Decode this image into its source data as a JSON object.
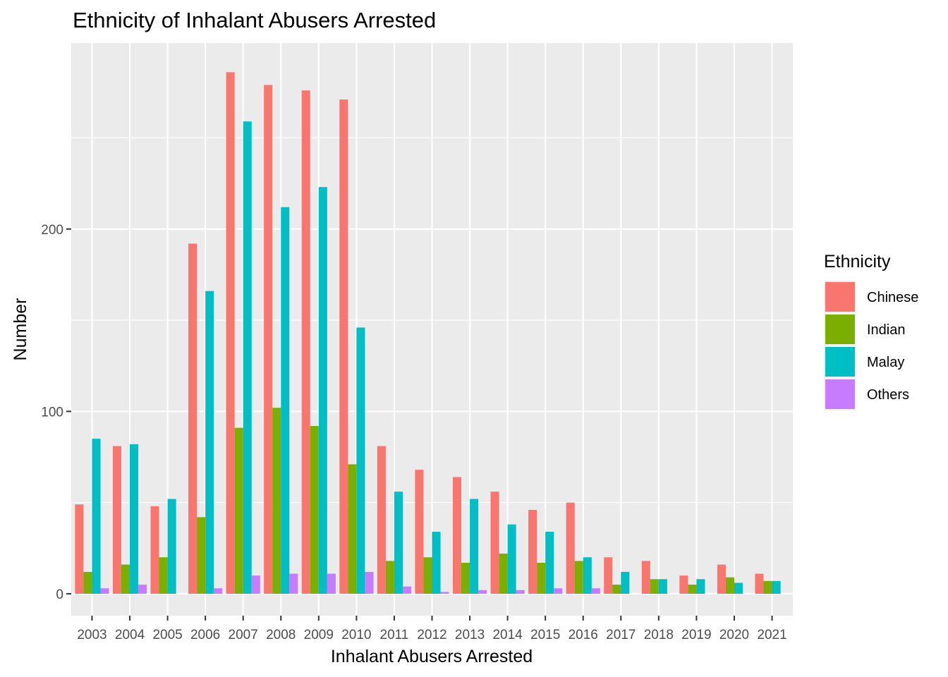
{
  "chart_data": {
    "type": "bar",
    "title": "Ethnicity of Inhalant Abusers Arrested",
    "xlabel": "Inhalant Abusers Arrested",
    "ylabel": "Number",
    "categories": [
      "2003",
      "2004",
      "2005",
      "2006",
      "2007",
      "2008",
      "2009",
      "2010",
      "2011",
      "2012",
      "2013",
      "2014",
      "2015",
      "2016",
      "2017",
      "2018",
      "2019",
      "2020",
      "2021"
    ],
    "series": [
      {
        "name": "Chinese",
        "color": "#F8766D",
        "values": [
          49,
          81,
          48,
          192,
          286,
          279,
          276,
          271,
          81,
          68,
          64,
          56,
          46,
          50,
          20,
          18,
          10,
          16,
          11
        ]
      },
      {
        "name": "Indian",
        "color": "#7CAE00",
        "values": [
          12,
          16,
          20,
          42,
          91,
          102,
          92,
          71,
          18,
          20,
          17,
          22,
          17,
          18,
          5,
          8,
          5,
          9,
          7
        ]
      },
      {
        "name": "Malay",
        "color": "#00BFC4",
        "values": [
          85,
          82,
          52,
          166,
          259,
          212,
          223,
          146,
          56,
          34,
          52,
          38,
          34,
          20,
          12,
          8,
          8,
          6,
          7
        ]
      },
      {
        "name": "Others",
        "color": "#C77CFF",
        "values": [
          3,
          5,
          0,
          3,
          10,
          11,
          11,
          12,
          4,
          1,
          2,
          2,
          3,
          3,
          0,
          0,
          0,
          0,
          0
        ]
      }
    ],
    "y_ticks": [
      0,
      100,
      200
    ],
    "ylim": [
      -12,
      302
    ],
    "grid": true,
    "legend": {
      "title": "Ethnicity",
      "position": "right"
    }
  }
}
